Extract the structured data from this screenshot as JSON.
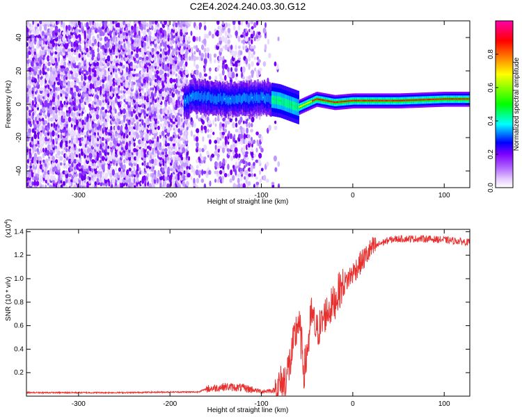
{
  "title": "C2E4.2024.240.03.30.G12",
  "chart_data": [
    {
      "type": "heatmap",
      "xlabel": "Height of straight line (km)",
      "ylabel": "Frequency (Hz)",
      "xlim": [
        -357,
        128
      ],
      "ylim": [
        -50,
        50
      ],
      "xticks": [
        -300,
        -200,
        -100,
        0,
        100
      ],
      "yticks": [
        -40,
        -20,
        0,
        20,
        40
      ],
      "grid": false,
      "colorbar": {
        "label": "Normalized spectral amplitude",
        "range": [
          0,
          1
        ],
        "ticks": [
          "0.0",
          "0.2",
          "0.4",
          "0.6",
          "0.8"
        ],
        "colors": [
          "#ffffff",
          "#e6ccff",
          "#b066ff",
          "#7f00ff",
          "#0000ff",
          "#00ffff",
          "#00ff00",
          "#ffff00",
          "#ff8000",
          "#ff0000",
          "#ff00aa"
        ]
      },
      "ridge": {
        "description_values": [
          {
            "x": -180,
            "y": 5
          },
          {
            "x": -140,
            "y": 3
          },
          {
            "x": -100,
            "y": 4
          },
          {
            "x": -80,
            "y": 2
          },
          {
            "x": -60,
            "y": -2
          },
          {
            "x": -40,
            "y": 3
          },
          {
            "x": -20,
            "y": 1
          },
          {
            "x": 0,
            "y": 2
          },
          {
            "x": 50,
            "y": 2
          },
          {
            "x": 100,
            "y": 3
          },
          {
            "x": 128,
            "y": 3
          }
        ]
      }
    },
    {
      "type": "line",
      "xlabel": "Height of straight line (km)",
      "ylabel": "SNR (10 * v/v)",
      "multiplier": "(x10",
      "multiplier_exp": "4",
      "multiplier_close": ")",
      "xlim": [
        -357,
        128
      ],
      "ylim": [
        0,
        1.42
      ],
      "xticks": [
        -300,
        -200,
        -100,
        0,
        100
      ],
      "yticks": [
        "0.2",
        "0.4",
        "0.6",
        "0.8",
        "1.0",
        "1.2",
        "1.4"
      ],
      "line_color": "#e8302f",
      "series": [
        {
          "x": [
            -357,
            -300,
            -250,
            -200,
            -170,
            -160,
            -140,
            -120,
            -100,
            -85,
            -75,
            -68,
            -62,
            -60,
            -57,
            -53,
            -48,
            -45,
            -40,
            -35,
            -30,
            -25,
            -20,
            -15,
            -10,
            -5,
            0,
            10,
            20,
            30,
            40,
            50,
            60,
            80,
            100,
            115,
            128
          ],
          "y": [
            0.03,
            0.03,
            0.03,
            0.035,
            0.035,
            0.06,
            0.08,
            0.07,
            0.04,
            0.05,
            0.12,
            0.3,
            0.55,
            0.65,
            0.5,
            0.2,
            0.5,
            0.7,
            0.55,
            0.6,
            0.7,
            0.75,
            0.8,
            0.9,
            0.95,
            1.0,
            1.05,
            1.15,
            1.25,
            1.3,
            1.33,
            1.34,
            1.34,
            1.34,
            1.33,
            1.32,
            1.31
          ]
        }
      ]
    }
  ]
}
